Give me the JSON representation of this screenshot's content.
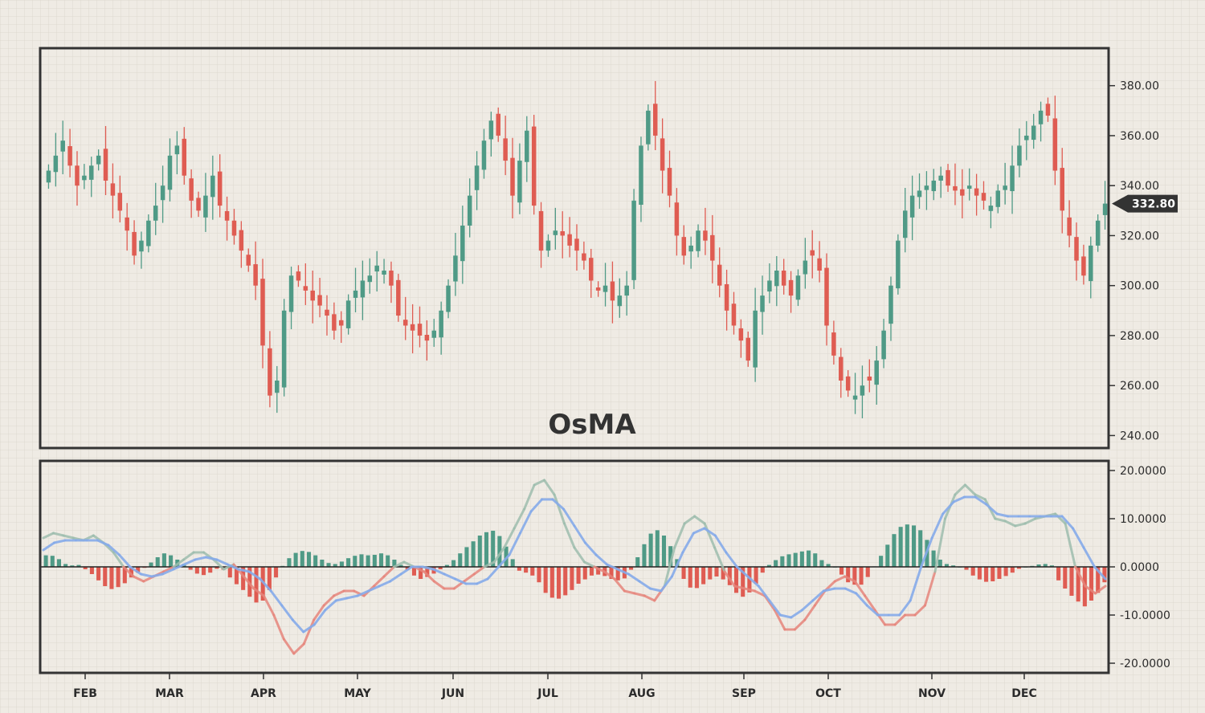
{
  "chart_data": [
    {
      "type": "candlestick",
      "title": "OsMA",
      "ylim": [
        235,
        395
      ],
      "y_ticks": [
        "380.00",
        "360.00",
        "340.00",
        "320.00",
        "300.00",
        "280.00",
        "260.00",
        "240.00"
      ],
      "y_tick_values": [
        380,
        360,
        340,
        320,
        300,
        280,
        260,
        240
      ],
      "x_ticks": [
        "FEB",
        "MAR",
        "APR",
        "MAY",
        "JUN",
        "JUL",
        "AUG",
        "SEP",
        "OCT",
        "NOV",
        "DEC"
      ],
      "last_price_label": "332.80",
      "last_price": 332.8,
      "grid": true,
      "close_series": [
        346,
        352,
        358,
        348,
        340,
        344,
        348,
        352,
        342,
        336,
        330,
        322,
        312,
        318,
        326,
        332,
        340,
        352,
        356,
        344,
        334,
        330,
        336,
        344,
        332,
        326,
        320,
        314,
        308,
        300,
        276,
        256,
        262,
        290,
        304,
        302,
        298,
        294,
        292,
        288,
        282,
        284,
        294,
        298,
        302,
        304,
        308,
        306,
        300,
        288,
        284,
        282,
        280,
        278,
        282,
        290,
        300,
        312,
        324,
        336,
        348,
        358,
        366,
        360,
        350,
        336,
        350,
        362,
        332,
        314,
        318,
        322,
        320,
        316,
        314,
        310,
        302,
        298,
        300,
        294,
        296,
        300,
        334,
        356,
        370,
        360,
        346,
        336,
        320,
        312,
        316,
        322,
        318,
        310,
        300,
        290,
        284,
        278,
        270,
        290,
        296,
        302,
        306,
        300,
        296,
        304,
        310,
        312,
        306,
        284,
        272,
        262,
        258,
        256,
        260,
        262,
        270,
        282,
        300,
        318,
        330,
        336,
        338,
        340,
        342,
        344,
        340,
        338,
        336,
        340,
        336,
        334,
        332,
        338,
        340,
        348,
        356,
        360,
        364,
        370,
        368,
        346,
        330,
        320,
        310,
        304,
        316,
        326,
        332.8
      ]
    },
    {
      "type": "bar+line",
      "name": "OsMA",
      "ylim": [
        -22,
        22
      ],
      "y_ticks": [
        "20.0000",
        "10.0000",
        "0.0000",
        "-10.0000",
        "-20.0000"
      ],
      "y_tick_values": [
        20,
        10,
        0,
        -10,
        -20
      ],
      "histogram": [
        2.4,
        2.3,
        1.6,
        0.6,
        0.3,
        0.4,
        -0.5,
        -1.5,
        -2.8,
        -4.0,
        -4.6,
        -4.2,
        -3.4,
        -2.2,
        -1.2,
        -0.2,
        0.9,
        2.0,
        2.8,
        2.4,
        1.5,
        0.6,
        -0.6,
        -1.4,
        -1.7,
        -1.2,
        -0.4,
        -0.6,
        -2.2,
        -3.6,
        -4.8,
        -6.2,
        -7.4,
        -7.0,
        -4.8,
        -2.2,
        0.2,
        1.8,
        2.9,
        3.3,
        3.1,
        2.4,
        1.5,
        0.8,
        0.6,
        1.1,
        1.8,
        2.3,
        2.6,
        2.4,
        2.5,
        2.8,
        2.4,
        1.5,
        0.4,
        -0.6,
        -1.8,
        -2.5,
        -2.1,
        -1.4,
        -0.5,
        0.4,
        1.4,
        2.8,
        4.1,
        5.3,
        6.5,
        7.2,
        7.5,
        6.4,
        4.2,
        1.6,
        -0.8,
        -1.2,
        -1.8,
        -3.2,
        -5.4,
        -6.4,
        -6.6,
        -5.9,
        -4.8,
        -3.5,
        -2.6,
        -1.8,
        -1.6,
        -1.9,
        -2.5,
        -2.8,
        -2.4,
        -0.6,
        2.0,
        4.7,
        6.9,
        7.6,
        6.5,
        4.3,
        1.6,
        -2.5,
        -4.3,
        -4.4,
        -3.6,
        -2.6,
        -2.0,
        -2.6,
        -3.8,
        -5.4,
        -6.2,
        -5.3,
        -3.5,
        -1.2,
        0.4,
        1.4,
        2.2,
        2.6,
        2.9,
        3.2,
        3.4,
        2.8,
        1.4,
        0.6,
        0.0,
        -1.6,
        -3.2,
        -3.7,
        -3.7,
        -2.1,
        0.1,
        2.3,
        4.6,
        6.8,
        8.3,
        8.8,
        8.6,
        7.6,
        5.6,
        3.4,
        1.5,
        0.6,
        0.3,
        0.0,
        -0.6,
        -1.8,
        -2.6,
        -3.1,
        -3.0,
        -2.5,
        -1.9,
        -1.2,
        -0.4,
        0.0,
        0.2,
        0.5,
        0.6,
        0.3,
        -2.8,
        -4.5,
        -6.0,
        -7.2,
        -8.2,
        -7.0,
        -5.4,
        -3.2
      ],
      "macd": [
        6,
        7,
        6.5,
        6,
        5.5,
        6.5,
        5,
        3,
        0,
        -2,
        -3,
        -2,
        -1,
        0,
        1.5,
        3,
        3,
        1.5,
        -0.5,
        0.5,
        -2,
        -4.5,
        -6,
        -10,
        -15,
        -18,
        -16,
        -11,
        -8,
        -6,
        -5,
        -5,
        -6,
        -4,
        -2,
        0,
        1,
        0,
        -1,
        -3,
        -4.5,
        -4.5,
        -3,
        -1.5,
        0,
        1,
        4,
        8,
        12,
        17,
        18,
        15,
        9,
        4,
        1,
        0,
        -1,
        -2.5,
        -5,
        -5.5,
        -6,
        -7,
        -4,
        4,
        9,
        10.5,
        9,
        4,
        -1,
        -4,
        -4.5,
        -5,
        -6,
        -9,
        -13,
        -13,
        -11,
        -8,
        -5,
        -3,
        -2,
        -3,
        -6,
        -9,
        -12,
        -12,
        -10,
        -10,
        -8,
        -1,
        10,
        15,
        17,
        15,
        14,
        10,
        9.5,
        8.5,
        9,
        10,
        10.5,
        11,
        9,
        0,
        -4,
        -5.5,
        -4
      ],
      "signal": [
        3.5,
        5,
        5.5,
        5.5,
        5.5,
        5.5,
        4.5,
        2.5,
        0,
        -1.5,
        -2,
        -1.5,
        -0.5,
        0.5,
        1.5,
        2,
        1.5,
        0.5,
        -0.5,
        -1,
        -2.5,
        -5,
        -8,
        -11,
        -13.5,
        -12,
        -9,
        -7,
        -6.5,
        -6,
        -5,
        -4,
        -3,
        -1.5,
        0,
        0,
        -0.5,
        -1.5,
        -2.5,
        -3.5,
        -3.5,
        -2.5,
        0,
        2.5,
        7,
        11.5,
        14,
        14,
        12,
        8.5,
        5,
        2.5,
        0.5,
        -0.5,
        -1.5,
        -3,
        -4.5,
        -5,
        -2,
        3,
        7,
        8,
        6.5,
        3,
        0,
        -2,
        -4,
        -7,
        -10,
        -10.5,
        -9,
        -7,
        -5,
        -4.5,
        -4.5,
        -5.5,
        -8,
        -10,
        -10,
        -10,
        -7,
        0,
        6,
        11,
        13.5,
        14.5,
        14.5,
        13,
        11,
        10.5,
        10.5,
        10.5,
        10.5,
        10.5,
        10.5,
        8,
        4,
        0,
        -2.5
      ]
    }
  ],
  "colors": {
    "up": "#4f9a86",
    "down": "#df5c52",
    "macd_line": "#9ebeae",
    "signal_line": "#86abea",
    "signal_line_neg": "#e6867c",
    "badge": "#333333",
    "frame": "#333333",
    "grid": "#dcd6cc",
    "background": "#efebe4"
  }
}
